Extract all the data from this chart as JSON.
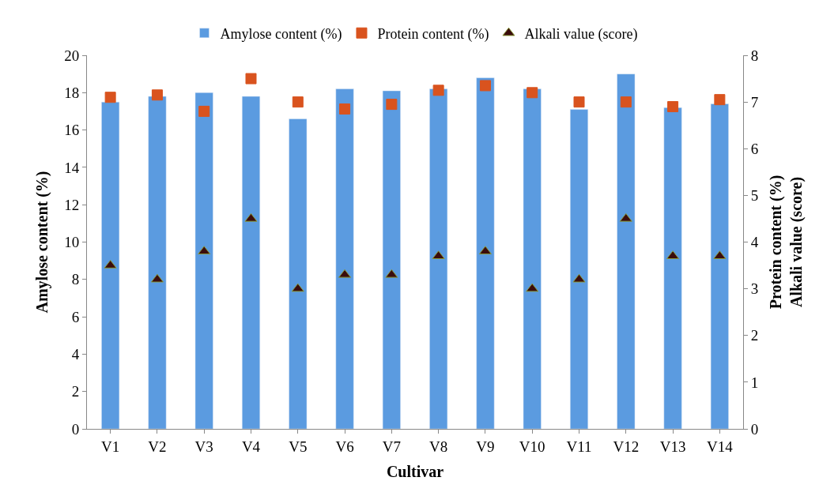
{
  "chart_data": {
    "type": "bar",
    "xlabel": "Cultivar",
    "ylabel": "Amylose content (%)",
    "y2label": "Protein content (%)\nAlkali value (score)",
    "categories": [
      "V1",
      "V2",
      "V3",
      "V4",
      "V5",
      "V6",
      "V7",
      "V8",
      "V9",
      "V10",
      "V11",
      "V12",
      "V13",
      "V14"
    ],
    "series": [
      {
        "name": "Amylose content (%)",
        "color": "#5b9be0",
        "values": [
          17.5,
          17.8,
          18.0,
          17.8,
          16.6,
          18.2,
          18.1,
          18.2,
          18.8,
          18.2,
          17.1,
          19.0,
          17.2,
          17.4
        ]
      },
      {
        "name": "Protein content (%)",
        "type": "scatter",
        "axis": "y2",
        "marker": "square",
        "color": "#d9531e",
        "values": [
          7.1,
          7.15,
          6.8,
          7.5,
          7.0,
          6.85,
          6.95,
          7.25,
          7.35,
          7.2,
          7.0,
          7.0,
          6.9,
          7.05
        ]
      },
      {
        "name": "Alkali value (score)",
        "type": "scatter",
        "axis": "y2",
        "marker": "triangle",
        "color": "#3a0c0c",
        "values": [
          3.5,
          3.2,
          3.8,
          4.5,
          3.0,
          3.3,
          3.3,
          3.7,
          3.8,
          3.0,
          3.2,
          4.5,
          3.7,
          3.7
        ]
      }
    ],
    "ylim": [
      0,
      20
    ],
    "yticks": [
      0,
      2,
      4,
      6,
      8,
      10,
      12,
      14,
      16,
      18,
      20
    ],
    "y2lim": [
      0,
      8
    ],
    "y2ticks": [
      0,
      1,
      2,
      3,
      4,
      5,
      6,
      7,
      8
    ],
    "legend": "top"
  }
}
